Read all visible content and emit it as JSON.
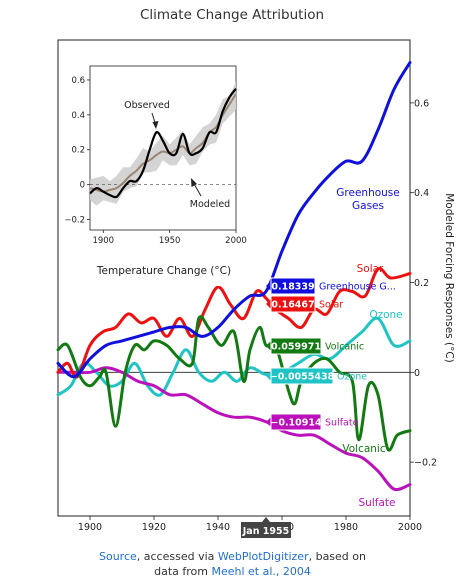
{
  "chart_data": {
    "type": "line",
    "title": "Climate Change Attribution",
    "xlabel": "",
    "ylabel": "Modeled Forcing Responses (°C)",
    "xlim": [
      1890,
      2000
    ],
    "ylim": [
      -0.32,
      0.74
    ],
    "x_ticks": [
      "1900",
      "1920",
      "1940",
      "1960",
      "1980",
      "2000"
    ],
    "y_ticks": [
      "−0.2",
      "0",
      "0.2",
      "0.4",
      "0.6"
    ],
    "hover_x_label": "Jan 1955",
    "hover_x": 1955,
    "series": [
      {
        "name": "Greenhouse Gases",
        "label_lines": [
          "Greenhouse",
          "Gases"
        ],
        "color": "#1010dd",
        "hover_value": "0.18339",
        "hover_name": "Greenhouse G...",
        "x": [
          1890,
          1895,
          1900,
          1905,
          1910,
          1915,
          1920,
          1925,
          1930,
          1935,
          1940,
          1945,
          1950,
          1955,
          1960,
          1965,
          1970,
          1975,
          1980,
          1985,
          1990,
          1995,
          2000
        ],
        "y": [
          0.02,
          -0.01,
          0.03,
          0.06,
          0.07,
          0.08,
          0.09,
          0.1,
          0.1,
          0.08,
          0.1,
          0.14,
          0.17,
          0.18,
          0.27,
          0.35,
          0.4,
          0.44,
          0.47,
          0.47,
          0.54,
          0.63,
          0.69
        ]
      },
      {
        "name": "Solar",
        "label_lines": [
          "Solar"
        ],
        "color": "#ee1111",
        "hover_value": "0.16467",
        "hover_name": "Solar",
        "x": [
          1890,
          1893,
          1896,
          1900,
          1904,
          1908,
          1912,
          1916,
          1920,
          1924,
          1928,
          1932,
          1936,
          1940,
          1944,
          1948,
          1952,
          1955,
          1958,
          1962,
          1966,
          1970,
          1974,
          1978,
          1982,
          1986,
          1990,
          1994,
          2000
        ],
        "y": [
          0.0,
          0.02,
          -0.01,
          0.06,
          0.09,
          0.1,
          0.13,
          0.11,
          0.12,
          0.08,
          0.12,
          0.08,
          0.14,
          0.19,
          0.15,
          0.12,
          0.18,
          0.165,
          0.14,
          0.12,
          0.1,
          0.14,
          0.13,
          0.18,
          0.18,
          0.17,
          0.23,
          0.21,
          0.22
        ]
      },
      {
        "name": "Ozone",
        "label_lines": [
          "Ozone"
        ],
        "color": "#20c4c4",
        "hover_value": "−0.0055438",
        "hover_name": "Ozone",
        "x": [
          1890,
          1894,
          1898,
          1902,
          1906,
          1910,
          1914,
          1918,
          1922,
          1926,
          1930,
          1934,
          1938,
          1942,
          1946,
          1950,
          1955,
          1960,
          1965,
          1970,
          1975,
          1980,
          1985,
          1990,
          1995,
          2000
        ],
        "y": [
          -0.05,
          -0.03,
          0.02,
          0.0,
          -0.03,
          -0.02,
          0.02,
          -0.03,
          -0.05,
          0.0,
          0.05,
          0.0,
          -0.02,
          0.0,
          -0.02,
          0.01,
          -0.005,
          0.0,
          0.02,
          0.04,
          0.03,
          0.06,
          0.09,
          0.12,
          0.06,
          0.07
        ]
      },
      {
        "name": "Volcanic",
        "label_lines": [
          "Volcanic"
        ],
        "color": "#137a13",
        "hover_value": "0.059971",
        "hover_name": "Volcanic",
        "x": [
          1890,
          1893,
          1897,
          1900,
          1903,
          1905,
          1908,
          1911,
          1914,
          1917,
          1920,
          1924,
          1928,
          1932,
          1934,
          1937,
          1941,
          1945,
          1948,
          1950,
          1953,
          1955,
          1958,
          1962,
          1964,
          1966,
          1970,
          1974,
          1978,
          1982,
          1984,
          1987,
          1990,
          1993,
          1996,
          2000
        ],
        "y": [
          0.05,
          0.06,
          -0.01,
          -0.03,
          -0.01,
          0.0,
          -0.12,
          0.0,
          0.06,
          0.05,
          0.07,
          0.06,
          0.03,
          0.02,
          0.12,
          0.1,
          0.06,
          0.09,
          -0.02,
          0.05,
          0.1,
          0.06,
          0.06,
          -0.04,
          -0.07,
          -0.02,
          0.02,
          0.03,
          0.0,
          -0.02,
          -0.15,
          -0.03,
          -0.05,
          -0.17,
          -0.14,
          -0.13
        ]
      },
      {
        "name": "Sulfate",
        "label_lines": [
          "Sulfate"
        ],
        "color": "#bb11bb",
        "hover_value": "−0.10914",
        "hover_name": "Sulfate",
        "x": [
          1890,
          1895,
          1900,
          1905,
          1910,
          1915,
          1920,
          1925,
          1930,
          1935,
          1940,
          1945,
          1950,
          1955,
          1960,
          1965,
          1970,
          1975,
          1980,
          1985,
          1990,
          1995,
          2000
        ],
        "y": [
          0.0,
          0.0,
          0.0,
          0.01,
          0.0,
          -0.02,
          -0.03,
          -0.05,
          -0.05,
          -0.07,
          -0.09,
          -0.1,
          -0.1,
          -0.11,
          -0.13,
          -0.14,
          -0.14,
          -0.16,
          -0.18,
          -0.19,
          -0.22,
          -0.26,
          -0.25
        ]
      }
    ],
    "inset": {
      "xlabel": "Temperature Change (°C)",
      "xlim": [
        1890,
        2000
      ],
      "ylim": [
        -0.26,
        0.68
      ],
      "x_ticks": [
        "1900",
        "1950",
        "2000"
      ],
      "y_ticks": [
        "−0.2",
        "0",
        "0.2",
        "0.4",
        "0.6"
      ],
      "annotations": [
        "Observed",
        "Modeled"
      ],
      "observed": {
        "name": "Observed",
        "color": "#000000",
        "x": [
          1890,
          1895,
          1900,
          1905,
          1910,
          1915,
          1920,
          1925,
          1930,
          1935,
          1940,
          1945,
          1950,
          1955,
          1960,
          1965,
          1970,
          1975,
          1980,
          1985,
          1990,
          1995,
          2000
        ],
        "y": [
          -0.05,
          -0.02,
          -0.04,
          -0.06,
          -0.07,
          -0.02,
          0.02,
          0.02,
          0.08,
          0.2,
          0.3,
          0.25,
          0.18,
          0.18,
          0.29,
          0.18,
          0.18,
          0.21,
          0.3,
          0.3,
          0.42,
          0.5,
          0.55
        ]
      },
      "modeled": {
        "name": "Modeled",
        "color": "#9a8570",
        "x": [
          1890,
          1895,
          1900,
          1905,
          1910,
          1915,
          1920,
          1925,
          1930,
          1935,
          1940,
          1945,
          1950,
          1955,
          1960,
          1965,
          1970,
          1975,
          1980,
          1985,
          1990,
          1995,
          2000
        ],
        "y": [
          -0.02,
          -0.03,
          -0.04,
          -0.03,
          -0.02,
          0.01,
          0.05,
          0.08,
          0.12,
          0.14,
          0.17,
          0.19,
          0.18,
          0.2,
          0.22,
          0.18,
          0.21,
          0.24,
          0.3,
          0.33,
          0.4,
          0.46,
          0.52
        ]
      }
    }
  },
  "caption": {
    "source_link": "Source",
    "text1": ", accessed via ",
    "digitizer_link": "WebPlotDigitizer",
    "text2": ", based on",
    "text3": "data from ",
    "meehl_link": "Meehl et al., 2004"
  }
}
